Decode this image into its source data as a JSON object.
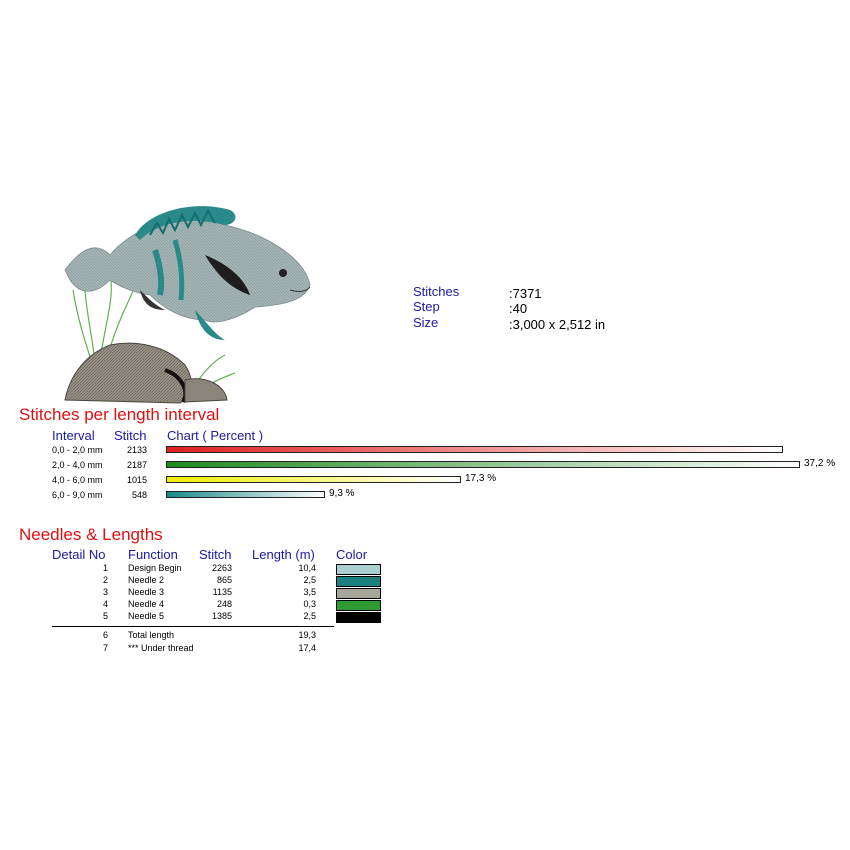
{
  "info": {
    "stitches_label": "Stitches",
    "stitches_value": ":7371",
    "step_label": "Step",
    "step_value": ":40",
    "size_label": "Size",
    "size_value": ":3,000 x 2,512 in"
  },
  "interval_section": {
    "title": "Stitches per length interval",
    "headers": {
      "interval": "Interval",
      "stitch": "Stitch",
      "chart": "Chart ( Percent )"
    },
    "rows": [
      {
        "interval": "0,0 - 2,0 mm",
        "stitch": "2133",
        "percent_label": "",
        "percent": 36.2,
        "color": "#e02020"
      },
      {
        "interval": "2,0 - 4,0 mm",
        "stitch": "2187",
        "percent_label": "37,2 %",
        "percent": 37.2,
        "color": "#1e8a1e"
      },
      {
        "interval": "4,0 - 6,0 mm",
        "stitch": "1015",
        "percent_label": "17,3 %",
        "percent": 17.3,
        "color": "#f0f000"
      },
      {
        "interval": "6,0 - 9,0 mm",
        "stitch": "548",
        "percent_label": "9,3 %",
        "percent": 9.3,
        "color": "#1a8a8a"
      }
    ]
  },
  "needles_section": {
    "title": "Needles & Lengths",
    "headers": {
      "detail": "Detail No",
      "function": "Function",
      "stitch": "Stitch",
      "length": "Length (m)",
      "color": "Color"
    },
    "rows": [
      {
        "no": "1",
        "function": "Design Begin",
        "stitch": "2263",
        "length": "10,4",
        "color": "#a9cfcf"
      },
      {
        "no": "2",
        "function": "Needle 2",
        "stitch": "865",
        "length": "2,5",
        "color": "#1a8080"
      },
      {
        "no": "3",
        "function": "Needle 3",
        "stitch": "1135",
        "length": "3,5",
        "color": "#a6a699"
      },
      {
        "no": "4",
        "function": "Needle 4",
        "stitch": "248",
        "length": "0,3",
        "color": "#2f9a2f"
      },
      {
        "no": "5",
        "function": "Needle 5",
        "stitch": "1385",
        "length": "2,5",
        "color": "#000000"
      }
    ],
    "totals": [
      {
        "no": "6",
        "function": "Total length",
        "length": "19,3"
      },
      {
        "no": "7",
        "function": "*** Under thread",
        "length": "17,4"
      }
    ]
  }
}
